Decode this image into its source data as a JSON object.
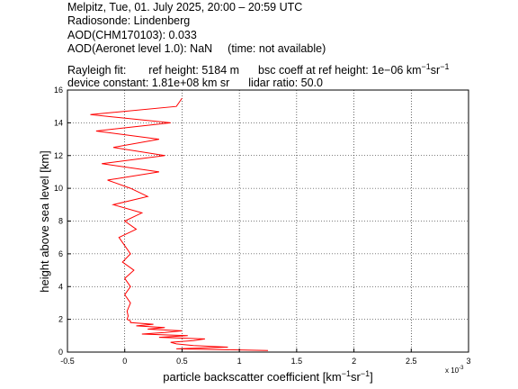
{
  "header": {
    "line1": "Melpitz, Tue, 01. July 2025, 20:00 – 20:59 UTC",
    "line2": "Radiosonde: Lindenberg",
    "line3": "AOD(CHM170103): 0.033",
    "line4_a": "AOD(Aeronet level 1.0): NaN",
    "line4_b": "(time: not available)",
    "line5_a": "Rayleigh fit:",
    "line5_b": "ref height: 5184 m",
    "line5_c": "bsc coeff at ref height: 1e−06 km",
    "line5_sup1": "−1",
    "line5_d": "sr",
    "line5_sup2": "−1",
    "line6_a": "device constant: 1.81e+08 km sr",
    "line6_b": "lidar ratio: 50.0"
  },
  "chart_data": {
    "type": "line",
    "xlabel": "particle backscatter coefficient [km⁻¹sr⁻¹]",
    "xlabel_main": "particle backscatter coefficient [km",
    "xlabel_sup1": "−1",
    "xlabel_mid": "sr",
    "xlabel_sup2": "−1",
    "xlabel_end": "]",
    "ylabel": "height above sea level [km]",
    "x_multiplier": "x 10",
    "x_multiplier_exp": "-3",
    "xlim": [
      -0.5,
      3
    ],
    "ylim": [
      0,
      16
    ],
    "xticks": [
      "-0.5",
      "0",
      "0.5",
      "1",
      "1.5",
      "2",
      "2.5",
      "3"
    ],
    "yticks": [
      "0",
      "2",
      "4",
      "6",
      "8",
      "10",
      "12",
      "14",
      "16"
    ],
    "grid": true,
    "series": [
      {
        "color": "#ff0000",
        "y": [
          0.1,
          0.2,
          0.3,
          0.4,
          0.5,
          0.6,
          0.7,
          0.8,
          0.9,
          1.0,
          1.1,
          1.2,
          1.3,
          1.4,
          1.5,
          1.6,
          1.7,
          1.8,
          1.9,
          2.0,
          2.2,
          2.5,
          3.0,
          3.5,
          4.0,
          4.5,
          5.0,
          5.5,
          6.0,
          6.5,
          7.0,
          7.5,
          8.0,
          8.5,
          9.0,
          9.5,
          10.0,
          10.5,
          11.0,
          11.5,
          12.0,
          12.5,
          13.0,
          13.5,
          14.0,
          14.5,
          15.0,
          15.5
        ],
        "x": [
          1.25,
          0.45,
          0.9,
          0.6,
          0.45,
          0.4,
          0.6,
          0.7,
          0.3,
          0.55,
          0.15,
          0.35,
          0.5,
          0.2,
          0.35,
          0.1,
          0.25,
          0.05,
          0.05,
          0.02,
          0.03,
          0.02,
          0.05,
          0.0,
          0.05,
          0.0,
          0.08,
          -0.02,
          0.05,
          0.0,
          -0.05,
          0.1,
          0.0,
          0.15,
          -0.1,
          0.2,
          0.05,
          -0.15,
          0.3,
          -0.2,
          0.35,
          -0.1,
          0.3,
          -0.25,
          0.4,
          -0.3,
          0.45,
          0.5
        ]
      }
    ]
  }
}
